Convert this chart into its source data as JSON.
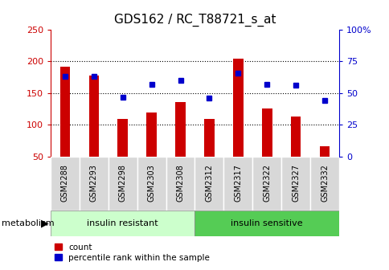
{
  "title": "GDS162 / RC_T88721_s_at",
  "samples": [
    "GSM2288",
    "GSM2293",
    "GSM2298",
    "GSM2303",
    "GSM2308",
    "GSM2312",
    "GSM2317",
    "GSM2322",
    "GSM2327",
    "GSM2332"
  ],
  "counts": [
    192,
    178,
    109,
    120,
    136,
    110,
    204,
    126,
    113,
    66
  ],
  "percentile_ranks": [
    63,
    63,
    47,
    57,
    60,
    46,
    66,
    57,
    56,
    44
  ],
  "ylim_left": [
    50,
    250
  ],
  "ylim_right": [
    0,
    100
  ],
  "yticks_left": [
    50,
    100,
    150,
    200,
    250
  ],
  "yticks_right": [
    0,
    25,
    50,
    75,
    100
  ],
  "ytick_labels_right": [
    "0",
    "25",
    "50",
    "75",
    "100%"
  ],
  "bar_color": "#cc0000",
  "marker_color": "#0000cc",
  "bar_width": 0.35,
  "group1_label": "insulin resistant",
  "group2_label": "insulin sensitive",
  "group1_count": 5,
  "group2_count": 5,
  "group1_bg": "#ccffcc",
  "group2_bg": "#55cc55",
  "sample_bg": "#d8d8d8",
  "metabolism_label": "metabolism",
  "legend_count_label": "count",
  "legend_percentile_label": "percentile rank within the sample",
  "hgrid_values": [
    100,
    150,
    200
  ],
  "title_fontsize": 11,
  "tick_fontsize": 8,
  "sample_fontsize": 7,
  "group_fontsize": 8,
  "legend_fontsize": 7.5
}
